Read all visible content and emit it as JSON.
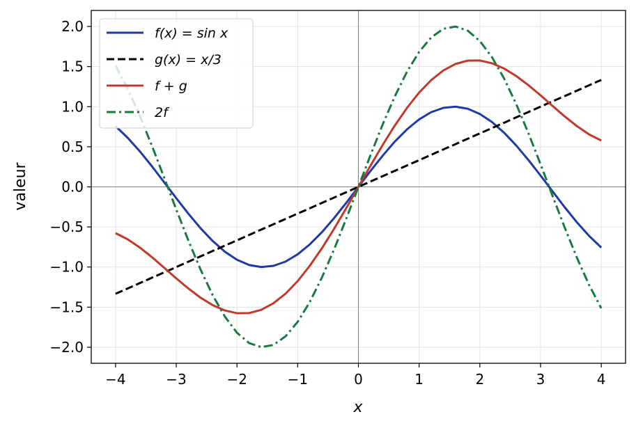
{
  "chart_data": {
    "type": "line",
    "title": "",
    "xlabel": "x",
    "ylabel": "valeur",
    "xlim": [
      -4.4,
      4.4
    ],
    "ylim": [
      -2.2,
      2.2
    ],
    "x_ticks": [
      -4,
      -3,
      -2,
      -1,
      0,
      1,
      2,
      3,
      4
    ],
    "x_tick_labels": [
      "−4",
      "−3",
      "−2",
      "−1",
      "0",
      "1",
      "2",
      "3",
      "4"
    ],
    "y_ticks": [
      -2.0,
      -1.5,
      -1.0,
      -0.5,
      0.0,
      0.5,
      1.0,
      1.5,
      2.0
    ],
    "y_tick_labels": [
      "−2.0",
      "−1.5",
      "−1.0",
      "−0.5",
      "0.0",
      "0.5",
      "1.0",
      "1.5",
      "2.0"
    ],
    "grid": true,
    "legend_position": "top-left",
    "x": [
      -4.0,
      -3.8,
      -3.6,
      -3.4,
      -3.2,
      -3.0,
      -2.8,
      -2.6,
      -2.4,
      -2.2,
      -2.0,
      -1.8,
      -1.6,
      -1.4,
      -1.2,
      -1.0,
      -0.8,
      -0.6,
      -0.4,
      -0.2,
      0.0,
      0.2,
      0.4,
      0.6,
      0.8,
      1.0,
      1.2,
      1.4,
      1.6,
      1.8,
      2.0,
      2.2,
      2.4,
      2.6,
      2.8,
      3.0,
      3.2,
      3.4,
      3.6,
      3.8,
      4.0
    ],
    "series": [
      {
        "name": "f(x) = sin x",
        "color": "#1f3aa6",
        "dash": "solid",
        "values": [
          0.757,
          0.612,
          0.443,
          0.256,
          0.058,
          -0.141,
          -0.335,
          -0.516,
          -0.675,
          -0.808,
          -0.909,
          -0.974,
          -1.0,
          -0.985,
          -0.932,
          -0.841,
          -0.717,
          -0.565,
          -0.389,
          -0.199,
          0.0,
          0.199,
          0.389,
          0.565,
          0.717,
          0.841,
          0.932,
          0.985,
          1.0,
          0.974,
          0.909,
          0.808,
          0.675,
          0.516,
          0.335,
          0.141,
          -0.058,
          -0.256,
          -0.443,
          -0.612,
          -0.757
        ]
      },
      {
        "name": "g(x) = x/3",
        "color": "#000000",
        "dash": "dashed",
        "values": [
          -1.333,
          -1.267,
          -1.2,
          -1.133,
          -1.067,
          -1.0,
          -0.933,
          -0.867,
          -0.8,
          -0.733,
          -0.667,
          -0.6,
          -0.533,
          -0.467,
          -0.4,
          -0.333,
          -0.267,
          -0.2,
          -0.133,
          -0.067,
          0.0,
          0.067,
          0.133,
          0.2,
          0.267,
          0.333,
          0.4,
          0.467,
          0.533,
          0.6,
          0.667,
          0.733,
          0.8,
          0.867,
          0.933,
          1.0,
          1.067,
          1.133,
          1.2,
          1.267,
          1.333
        ]
      },
      {
        "name": "f + g",
        "color": "#c0392b",
        "dash": "solid",
        "values": [
          -0.577,
          -0.654,
          -0.757,
          -0.877,
          -1.008,
          -1.141,
          -1.268,
          -1.382,
          -1.475,
          -1.541,
          -1.576,
          -1.574,
          -1.533,
          -1.452,
          -1.332,
          -1.175,
          -0.984,
          -0.765,
          -0.523,
          -0.265,
          0.0,
          0.265,
          0.523,
          0.765,
          0.984,
          1.175,
          1.332,
          1.452,
          1.533,
          1.574,
          1.576,
          1.541,
          1.475,
          1.382,
          1.268,
          1.141,
          1.008,
          0.877,
          0.757,
          0.654,
          0.577
        ]
      },
      {
        "name": "2f",
        "color": "#1a7a3e",
        "dash": "dashdot",
        "values": [
          1.514,
          1.224,
          0.885,
          0.511,
          0.117,
          -0.282,
          -0.67,
          -1.031,
          -1.351,
          -1.617,
          -1.819,
          -1.948,
          -1.999,
          -1.971,
          -1.864,
          -1.683,
          -1.435,
          -1.129,
          -0.779,
          -0.397,
          0.0,
          0.397,
          0.779,
          1.129,
          1.435,
          1.683,
          1.864,
          1.971,
          1.999,
          1.948,
          1.819,
          1.617,
          1.351,
          1.031,
          0.67,
          0.282,
          -0.117,
          -0.511,
          -0.885,
          -1.224,
          -1.514
        ]
      }
    ]
  }
}
